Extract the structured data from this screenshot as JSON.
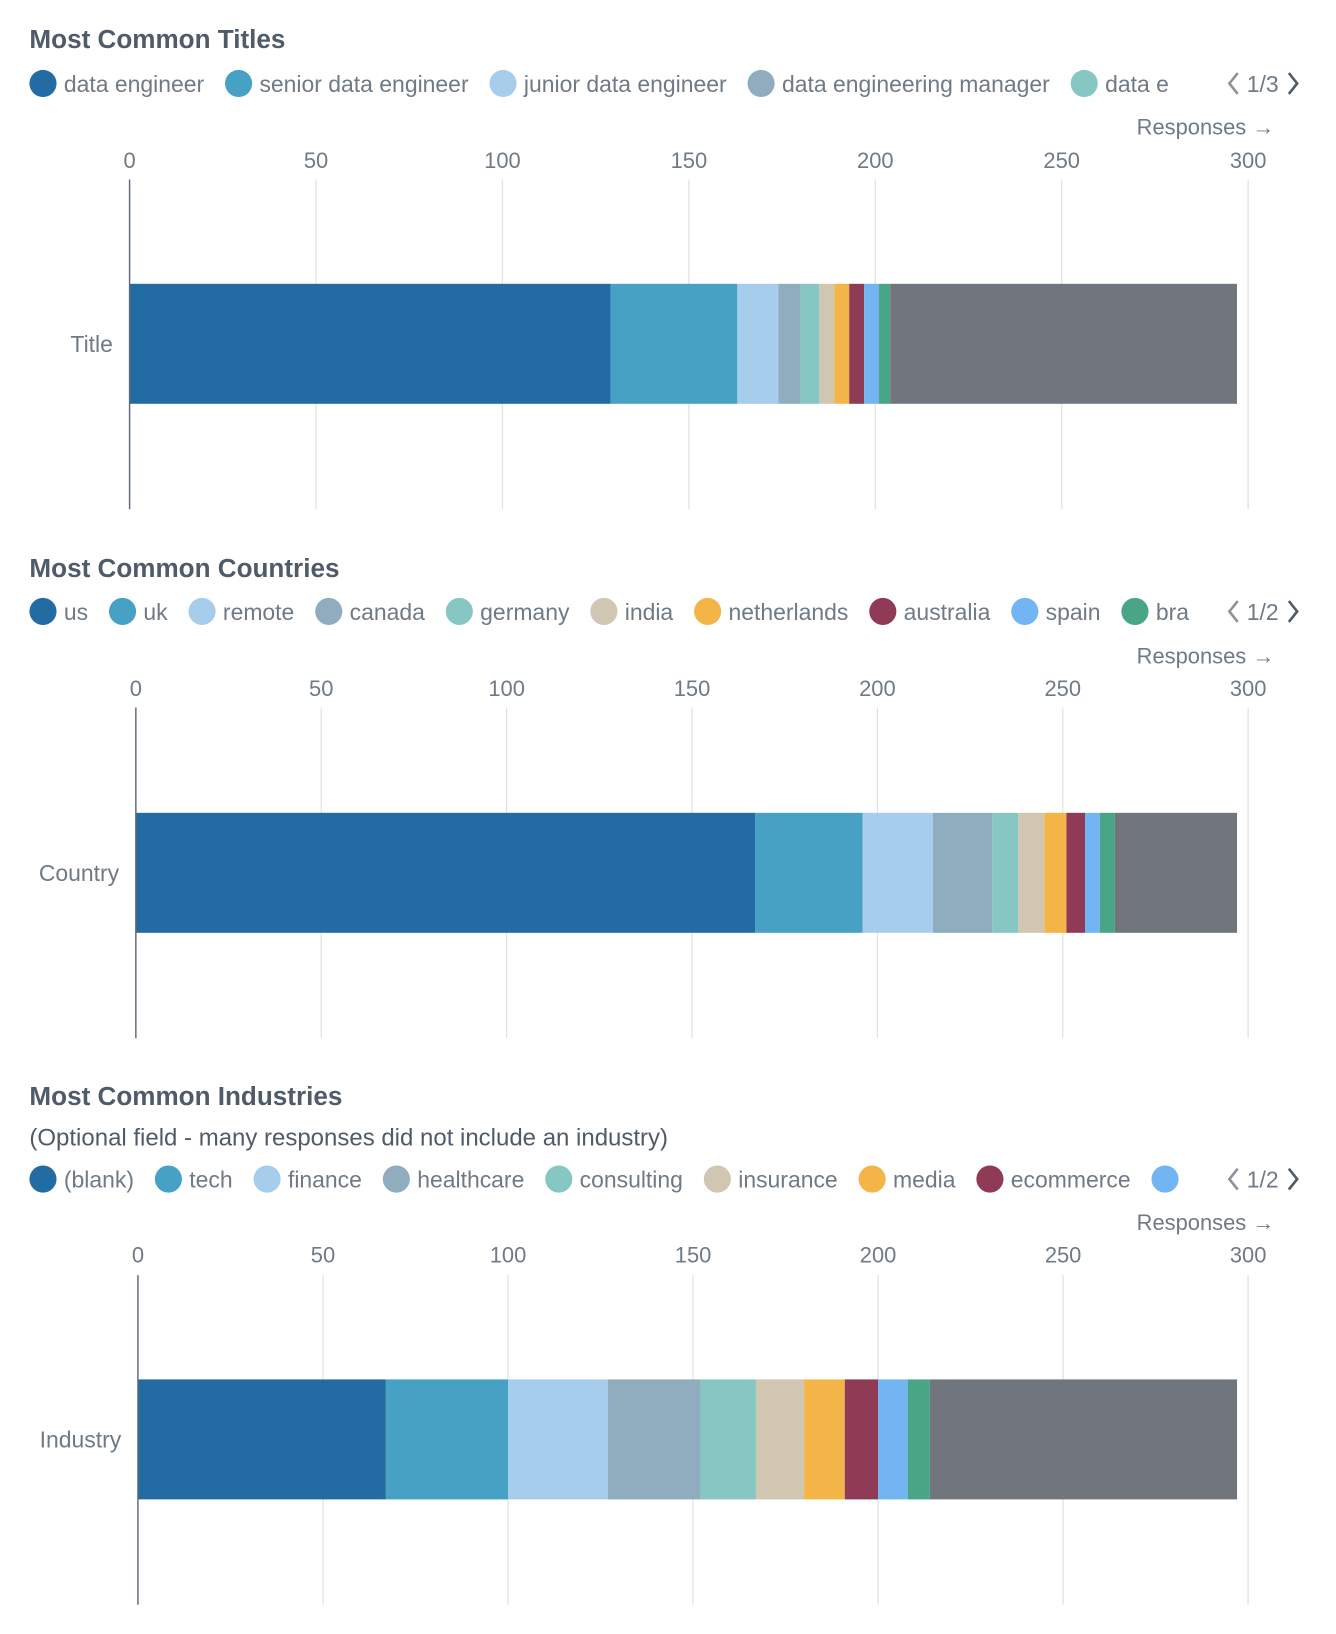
{
  "colors": [
    "#236ba3",
    "#47a1c4",
    "#a7cdec",
    "#8fadbf",
    "#86c7c4",
    "#d0c6b1",
    "#f3b547",
    "#8f3b55",
    "#72b5f2",
    "#48a585",
    "#71767e"
  ],
  "chart_data": [
    {
      "type": "bar",
      "orientation": "horizontal-stacked",
      "title": "Most Common Titles",
      "subtitle": "",
      "xlabel": "Responses →",
      "categories": [
        "Title"
      ],
      "xlim": [
        0,
        300
      ],
      "xticks": [
        "0",
        "50",
        "100",
        "150",
        "200",
        "250",
        "300"
      ],
      "grid": true,
      "legend_position": "top",
      "legend_page": "1/3",
      "legend_labels": [
        "data engineer",
        "senior data engineer",
        "junior data engineer",
        "data engineering manager",
        "data e"
      ],
      "series": [
        {
          "name": "data engineer",
          "values": [
            129
          ]
        },
        {
          "name": "senior data engineer",
          "values": [
            34
          ]
        },
        {
          "name": "junior data engineer",
          "values": [
            11
          ]
        },
        {
          "name": "data engineering manager",
          "values": [
            6
          ]
        },
        {
          "values": [
            5
          ]
        },
        {
          "values": [
            4
          ]
        },
        {
          "values": [
            4
          ]
        },
        {
          "values": [
            4
          ]
        },
        {
          "values": [
            4
          ]
        },
        {
          "values": [
            3
          ]
        },
        {
          "values": [
            93
          ]
        }
      ]
    },
    {
      "type": "bar",
      "orientation": "horizontal-stacked",
      "title": "Most Common Countries",
      "subtitle": "",
      "xlabel": "Responses →",
      "categories": [
        "Country"
      ],
      "xlim": [
        0,
        300
      ],
      "xticks": [
        "0",
        "50",
        "100",
        "150",
        "200",
        "250",
        "300"
      ],
      "grid": true,
      "legend_position": "top",
      "legend_page": "1/2",
      "legend_labels": [
        "us",
        "uk",
        "remote",
        "canada",
        "germany",
        "india",
        "netherlands",
        "australia",
        "spain",
        "bra"
      ],
      "series": [
        {
          "name": "us",
          "values": [
            167
          ]
        },
        {
          "name": "uk",
          "values": [
            29
          ]
        },
        {
          "name": "remote",
          "values": [
            19
          ]
        },
        {
          "name": "canada",
          "values": [
            16
          ]
        },
        {
          "name": "germany",
          "values": [
            7
          ]
        },
        {
          "name": "india",
          "values": [
            7
          ]
        },
        {
          "name": "netherlands",
          "values": [
            6
          ]
        },
        {
          "name": "australia",
          "values": [
            5
          ]
        },
        {
          "name": "spain",
          "values": [
            4
          ]
        },
        {
          "values": [
            4
          ]
        },
        {
          "values": [
            33
          ]
        }
      ]
    },
    {
      "type": "bar",
      "orientation": "horizontal-stacked",
      "title": "Most Common Industries",
      "subtitle": "(Optional field - many responses did not include an industry)",
      "xlabel": "Responses →",
      "categories": [
        "Industry"
      ],
      "xlim": [
        0,
        300
      ],
      "xticks": [
        "0",
        "50",
        "100",
        "150",
        "200",
        "250",
        "300"
      ],
      "grid": true,
      "legend_position": "top",
      "legend_page": "1/2",
      "legend_labels": [
        "(blank)",
        "tech",
        "finance",
        "healthcare",
        "consulting",
        "insurance",
        "media",
        "ecommerce",
        ""
      ],
      "series": [
        {
          "name": "(blank)",
          "values": [
            67
          ]
        },
        {
          "name": "tech",
          "values": [
            33
          ]
        },
        {
          "name": "finance",
          "values": [
            27
          ]
        },
        {
          "name": "healthcare",
          "values": [
            25
          ]
        },
        {
          "name": "consulting",
          "values": [
            15
          ]
        },
        {
          "name": "insurance",
          "values": [
            13
          ]
        },
        {
          "name": "media",
          "values": [
            11
          ]
        },
        {
          "name": "ecommerce",
          "values": [
            9
          ]
        },
        {
          "values": [
            8
          ]
        },
        {
          "values": [
            6
          ]
        },
        {
          "values": [
            83
          ]
        }
      ]
    }
  ]
}
